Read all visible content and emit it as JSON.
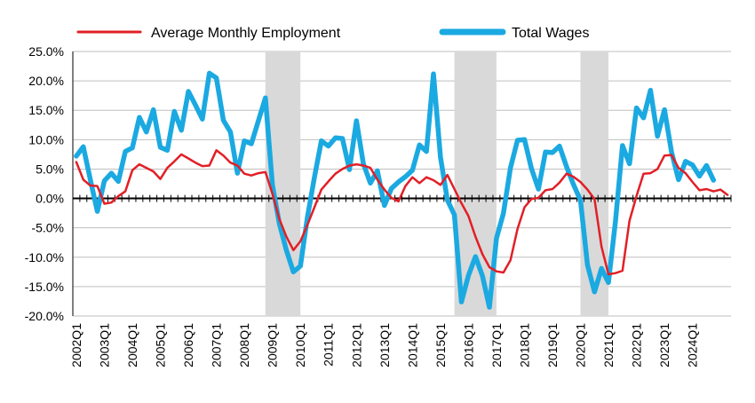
{
  "chart_data": {
    "type": "line",
    "title": "",
    "xlabel": "",
    "ylabel": "",
    "ylim": [
      -20,
      25
    ],
    "y_ticks": [
      "25.0%",
      "20.0%",
      "15.0%",
      "10.0%",
      "5.0%",
      "0.0%",
      "-5.0%",
      "-10.0%",
      "-15.0%",
      "-20.0%"
    ],
    "y_tick_values": [
      25,
      20,
      15,
      10,
      5,
      0,
      -5,
      -10,
      -15,
      -20
    ],
    "grid": "horizontal",
    "legend_position": "top",
    "x_tick_labels": [
      "2002Q1",
      "2003Q1",
      "2004Q1",
      "2005Q1",
      "2006Q1",
      "2007Q1",
      "2008Q1",
      "2009Q1",
      "2010Q1",
      "2011Q1",
      "2012Q1",
      "2013Q1",
      "2014Q1",
      "2015Q1",
      "2016Q1",
      "2017Q1",
      "2018Q1",
      "2019Q1",
      "2020Q1",
      "2021Q1",
      "2022Q1",
      "2023Q1",
      "2024Q1"
    ],
    "x_tick_label_quarter_index": [
      0,
      4,
      8,
      12,
      16,
      20,
      24,
      28,
      32,
      36,
      40,
      44,
      48,
      52,
      56,
      60,
      64,
      68,
      72,
      76,
      80,
      84,
      88
    ],
    "shaded_ranges": [
      {
        "from": "2008Q4",
        "to": "2010Q1"
      },
      {
        "from": "2015Q3",
        "to": "2017Q1"
      },
      {
        "from": "2020Q1",
        "to": "2021Q1"
      }
    ],
    "shaded_ranges_index": [
      [
        27,
        32
      ],
      [
        54,
        60
      ],
      [
        72,
        76
      ]
    ],
    "series": [
      {
        "name": "Average Monthly Employment",
        "color": "#e21f26",
        "values": [
          6.2,
          3.2,
          2.2,
          2.1,
          -0.9,
          -0.7,
          0.4,
          1.2,
          4.8,
          5.8,
          5.2,
          4.6,
          3.3,
          5.2,
          6.3,
          7.5,
          6.8,
          6.1,
          5.5,
          5.6,
          8.2,
          7.3,
          6.1,
          5.6,
          4.2,
          3.9,
          4.3,
          4.5,
          0.8,
          -3.5,
          -6.5,
          -8.8,
          -7.3,
          -4.5,
          -1.5,
          1.5,
          2.9,
          4.2,
          5.0,
          5.6,
          5.8,
          5.6,
          5.2,
          3.2,
          1.5,
          0.1,
          -0.5,
          2.1,
          3.6,
          2.6,
          3.6,
          3.1,
          2.3,
          4.0,
          1.6,
          -0.8,
          -3.0,
          -6.5,
          -9.5,
          -11.7,
          -12.4,
          -12.6,
          -10.5,
          -5.2,
          -1.5,
          -0.1,
          0.1,
          1.4,
          1.6,
          2.7,
          4.2,
          3.7,
          2.8,
          1.5,
          -0.1,
          -8.2,
          -12.9,
          -12.7,
          -12.3,
          -3.8,
          0.4,
          4.2,
          4.3,
          5.0,
          7.3,
          7.4,
          5.2,
          4.3,
          2.8,
          1.4,
          1.6,
          1.2,
          1.5,
          0.6
        ]
      },
      {
        "name": "Total Wages",
        "color": "#1ba9e1",
        "values": [
          7.2,
          8.8,
          3.2,
          -2.2,
          3.0,
          4.3,
          2.9,
          8.0,
          8.6,
          13.8,
          11.3,
          15.1,
          8.7,
          8.2,
          14.8,
          11.6,
          18.2,
          15.9,
          13.5,
          21.3,
          20.5,
          13.3,
          11.3,
          4.3,
          9.8,
          9.3,
          13.2,
          17.1,
          2.3,
          -4.3,
          -8.8,
          -12.5,
          -11.5,
          -3.2,
          3.6,
          9.8,
          8.9,
          10.3,
          10.2,
          4.9,
          13.2,
          5.9,
          2.6,
          4.7,
          -1.2,
          1.7,
          2.8,
          3.7,
          4.8,
          9.1,
          8.0,
          21.2,
          7.0,
          -0.3,
          -2.8,
          -17.6,
          -13.1,
          -9.9,
          -13.2,
          -18.5,
          -6.8,
          -2.5,
          5.2,
          9.9,
          10.0,
          5.1,
          1.6,
          7.9,
          7.8,
          8.9,
          5.4,
          2.4,
          -0.3,
          -11.3,
          -15.9,
          -11.9,
          -14.3,
          -3.9,
          9.0,
          5.9,
          15.4,
          13.7,
          18.4,
          10.6,
          15.1,
          7.9,
          3.2,
          6.3,
          5.7,
          3.8,
          5.6,
          3.1
        ]
      }
    ]
  }
}
